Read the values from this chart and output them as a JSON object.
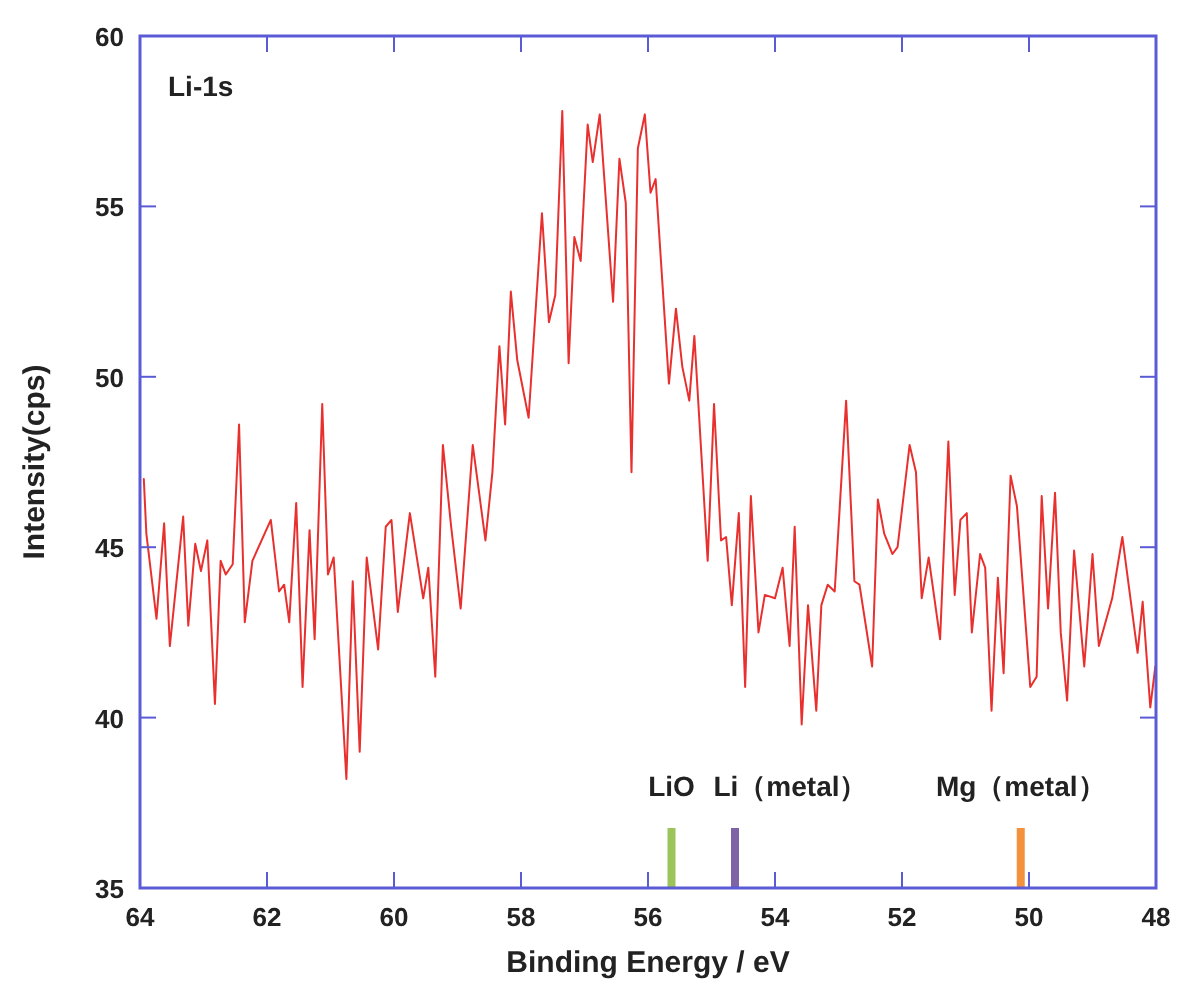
{
  "chart_data": {
    "type": "line",
    "xlabel": "Binding Energy / eV",
    "ylabel": "Intensity(cps)",
    "annotations": [
      "Li-1s"
    ],
    "xlim": [
      64,
      48
    ],
    "xticks": [
      64,
      62,
      60,
      58,
      56,
      54,
      52,
      50,
      48
    ],
    "ylim": [
      35,
      60
    ],
    "yticks": [
      35,
      40,
      45,
      50,
      55,
      60
    ],
    "grid": false,
    "marker": "none",
    "line_style": "solid",
    "series": [
      {
        "color": "#e8312f",
        "x": [
          63.94,
          63.9,
          63.74,
          63.62,
          63.53,
          63.32,
          63.24,
          63.13,
          63.04,
          62.94,
          62.82,
          62.73,
          62.65,
          62.54,
          62.44,
          62.35,
          62.23,
          61.94,
          61.81,
          61.73,
          61.65,
          61.54,
          61.44,
          61.33,
          61.25,
          61.13,
          61.04,
          60.95,
          60.75,
          60.65,
          60.54,
          60.43,
          60.25,
          60.13,
          60.04,
          59.94,
          59.75,
          59.54,
          59.46,
          59.35,
          59.23,
          59.1,
          58.95,
          58.76,
          58.56,
          58.45,
          58.34,
          58.25,
          58.16,
          58.06,
          57.88,
          57.67,
          57.56,
          57.46,
          57.35,
          57.25,
          57.16,
          57.06,
          56.95,
          56.87,
          56.76,
          56.55,
          56.45,
          56.35,
          56.26,
          56.16,
          56.05,
          55.96,
          55.88,
          55.67,
          55.56,
          55.46,
          55.35,
          55.27,
          55.06,
          54.96,
          54.85,
          54.77,
          54.68,
          54.57,
          54.47,
          54.38,
          54.26,
          54.16,
          54.0,
          53.88,
          53.77,
          53.69,
          53.58,
          53.48,
          53.35,
          53.27,
          53.17,
          53.06,
          52.88,
          52.75,
          52.67,
          52.47,
          52.38,
          52.28,
          52.15,
          52.07,
          51.88,
          51.78,
          51.69,
          51.58,
          51.4,
          51.27,
          51.17,
          51.08,
          50.98,
          50.9,
          50.77,
          50.69,
          50.59,
          50.49,
          50.4,
          50.29,
          50.19,
          49.98,
          49.88,
          49.8,
          49.7,
          49.59,
          49.5,
          49.4,
          49.29,
          49.13,
          49.0,
          48.9,
          48.69,
          48.53,
          48.29,
          48.21,
          48.09,
          48.01
        ],
        "values": [
          47.0,
          45.4,
          42.9,
          45.7,
          42.1,
          45.9,
          42.7,
          45.1,
          44.3,
          45.2,
          40.4,
          44.6,
          44.2,
          44.5,
          48.6,
          42.8,
          44.6,
          45.8,
          43.7,
          43.9,
          42.8,
          46.3,
          40.9,
          45.5,
          42.3,
          49.2,
          44.2,
          44.7,
          38.2,
          44.0,
          39.0,
          44.7,
          42.0,
          45.6,
          45.8,
          43.1,
          46.0,
          43.5,
          44.4,
          41.2,
          48.0,
          45.6,
          43.2,
          48.0,
          45.2,
          47.2,
          50.9,
          48.6,
          52.5,
          50.5,
          48.8,
          54.8,
          51.6,
          52.4,
          57.8,
          50.4,
          54.1,
          53.4,
          57.4,
          56.3,
          57.7,
          52.2,
          56.4,
          55.1,
          47.2,
          56.7,
          57.7,
          55.4,
          55.8,
          49.8,
          52.0,
          50.3,
          49.3,
          51.2,
          44.6,
          49.2,
          45.2,
          45.3,
          43.3,
          46.0,
          40.9,
          46.5,
          42.5,
          43.6,
          43.5,
          44.4,
          42.1,
          45.6,
          39.8,
          43.3,
          40.2,
          43.3,
          43.9,
          43.7,
          49.3,
          44.0,
          43.9,
          41.5,
          46.4,
          45.4,
          44.8,
          45.0,
          48.0,
          47.2,
          43.5,
          44.7,
          42.3,
          48.1,
          43.6,
          45.8,
          46.0,
          42.5,
          44.8,
          44.4,
          40.2,
          44.1,
          41.3,
          47.1,
          46.2,
          40.9,
          41.2,
          46.5,
          43.2,
          46.6,
          42.5,
          40.5,
          44.9,
          41.5,
          44.8,
          42.1,
          43.5,
          45.3,
          41.9,
          43.4,
          40.3,
          41.5
        ]
      }
    ],
    "ref_lines": [
      {
        "axis": "x",
        "value": 55.63,
        "label": "LiO",
        "color": "#9bc45a"
      },
      {
        "axis": "x",
        "value": 54.63,
        "label": "Li（metal）",
        "color": "#7e63a6"
      },
      {
        "axis": "x",
        "value": 50.13,
        "label": "Mg（metal）",
        "color": "#f4913c"
      }
    ]
  }
}
